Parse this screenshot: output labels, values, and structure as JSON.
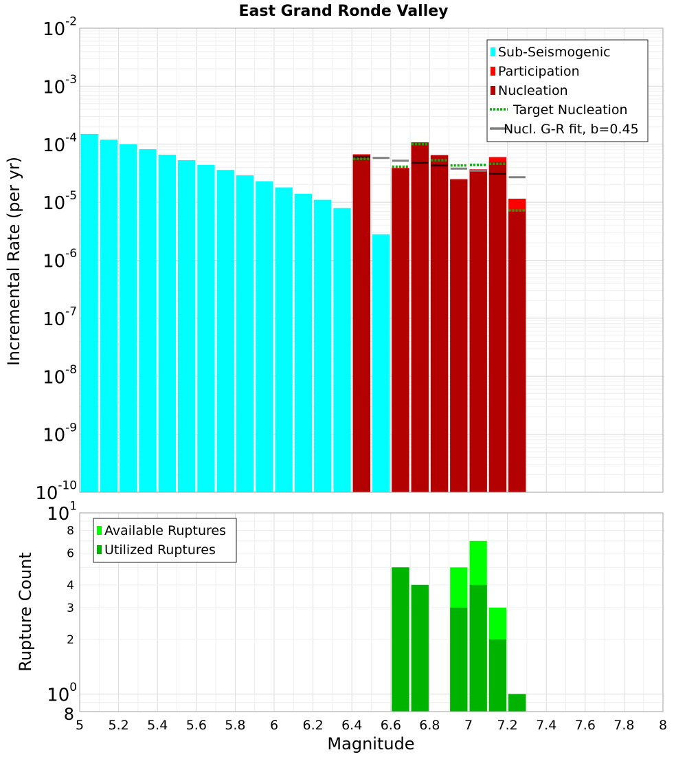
{
  "chart_data": [
    {
      "type": "bar",
      "title": "East Grand Ronde Valley",
      "ylabel": "Incremental Rate (per yr)",
      "yscale": "log",
      "ylim": [
        1e-10,
        0.01
      ],
      "xlim": [
        5,
        8
      ],
      "y_ticks": [
        {
          "base": "10",
          "exp": "-10",
          "value": 1e-10
        },
        {
          "base": "10",
          "exp": "-9",
          "value": 1e-09
        },
        {
          "base": "10",
          "exp": "-8",
          "value": 1e-08
        },
        {
          "base": "10",
          "exp": "-7",
          "value": 1e-07
        },
        {
          "base": "10",
          "exp": "-6",
          "value": 1e-06
        },
        {
          "base": "10",
          "exp": "-5",
          "value": 1e-05
        },
        {
          "base": "10",
          "exp": "-4",
          "value": 0.0001
        },
        {
          "base": "10",
          "exp": "-3",
          "value": 0.001
        },
        {
          "base": "10",
          "exp": "-2",
          "value": 0.01
        }
      ],
      "legend_position": "top-right",
      "series": [
        {
          "name": "Sub-Seismogenic",
          "kind": "bar",
          "color": "#00ffff",
          "x": [
            5.05,
            5.15,
            5.25,
            5.35,
            5.45,
            5.55,
            5.65,
            5.75,
            5.85,
            5.95,
            6.05,
            6.15,
            6.25,
            6.35,
            6.55
          ],
          "values": [
            0.00015,
            0.00012,
            0.0001,
            8.2e-05,
            6.6e-05,
            5.3e-05,
            4.4e-05,
            3.6e-05,
            2.9e-05,
            2.3e-05,
            1.8e-05,
            1.4e-05,
            1.1e-05,
            7.9e-06,
            2.8e-06
          ]
        },
        {
          "name": "Participation",
          "kind": "bar",
          "color": "#ff0000",
          "x": [
            6.45,
            6.65,
            6.75,
            6.85,
            6.95,
            7.05,
            7.15,
            7.25
          ],
          "values": [
            6.7e-05,
            3.9e-05,
            0.000108,
            6.5e-05,
            2.5e-05,
            3.7e-05,
            6e-05,
            1.15e-05
          ]
        },
        {
          "name": "Nucleation",
          "kind": "bar",
          "color": "#b30000",
          "x": [
            6.45,
            6.65,
            6.75,
            6.85,
            6.95,
            7.05,
            7.15,
            7.25
          ],
          "values": [
            6.6e-05,
            3.85e-05,
            0.000105,
            6.4e-05,
            2.45e-05,
            3.5e-05,
            5e-05,
            7e-06
          ]
        },
        {
          "name": "Target Nucleation",
          "kind": "marker-dotted",
          "color": "#00b300",
          "x": [
            6.45,
            6.65,
            6.75,
            6.85,
            6.95,
            7.05,
            7.15,
            7.25
          ],
          "values": [
            5.6e-05,
            4.1e-05,
            0.0001,
            5.3e-05,
            4.3e-05,
            4.4e-05,
            4.6e-05,
            7.2e-06
          ]
        },
        {
          "name": "Nucl. G-R fit, b=0.45",
          "kind": "marker-solid",
          "color": "#808080",
          "x": [
            6.45,
            6.55,
            6.65,
            6.75,
            6.85,
            6.95,
            7.05,
            7.15,
            7.25
          ],
          "values": [
            6e-05,
            5.8e-05,
            5.2e-05,
            4.8e-05,
            4.3e-05,
            3.8e-05,
            3.5e-05,
            3.1e-05,
            2.7e-05
          ]
        }
      ]
    },
    {
      "type": "bar",
      "xlabel": "Magnitude",
      "ylabel": "Rupture Count",
      "yscale": "log",
      "ylim": [
        0.8,
        10
      ],
      "xlim": [
        5,
        8
      ],
      "x_ticks": [
        "5",
        "5.2",
        "5.4",
        "5.6",
        "5.8",
        "6",
        "6.2",
        "6.4",
        "6.6",
        "6.8",
        "7",
        "7.2",
        "7.4",
        "7.6",
        "7.8",
        "8"
      ],
      "y_major_ticks": [
        {
          "base": "10",
          "exp": "0",
          "value": 1
        },
        {
          "base": "10",
          "exp": "1",
          "value": 10
        }
      ],
      "y_minor_ticks": [
        {
          "label": "8",
          "value": 0.8
        },
        {
          "label": "2",
          "value": 2
        },
        {
          "label": "3",
          "value": 3
        },
        {
          "label": "4",
          "value": 4
        },
        {
          "label": "6",
          "value": 6
        },
        {
          "label": "8",
          "value": 8
        }
      ],
      "legend_position": "top-left",
      "series": [
        {
          "name": "Available Ruptures",
          "kind": "bar",
          "color": "#00ff00",
          "x": [
            6.65,
            6.75,
            6.95,
            7.05,
            7.15,
            7.25
          ],
          "values": [
            5,
            4,
            5,
            7,
            3,
            1
          ]
        },
        {
          "name": "Utilized Ruptures",
          "kind": "bar",
          "color": "#00b300",
          "x": [
            6.65,
            6.75,
            6.95,
            7.05,
            7.15,
            7.25
          ],
          "values": [
            5,
            4,
            3,
            4,
            2,
            1
          ]
        }
      ]
    }
  ]
}
